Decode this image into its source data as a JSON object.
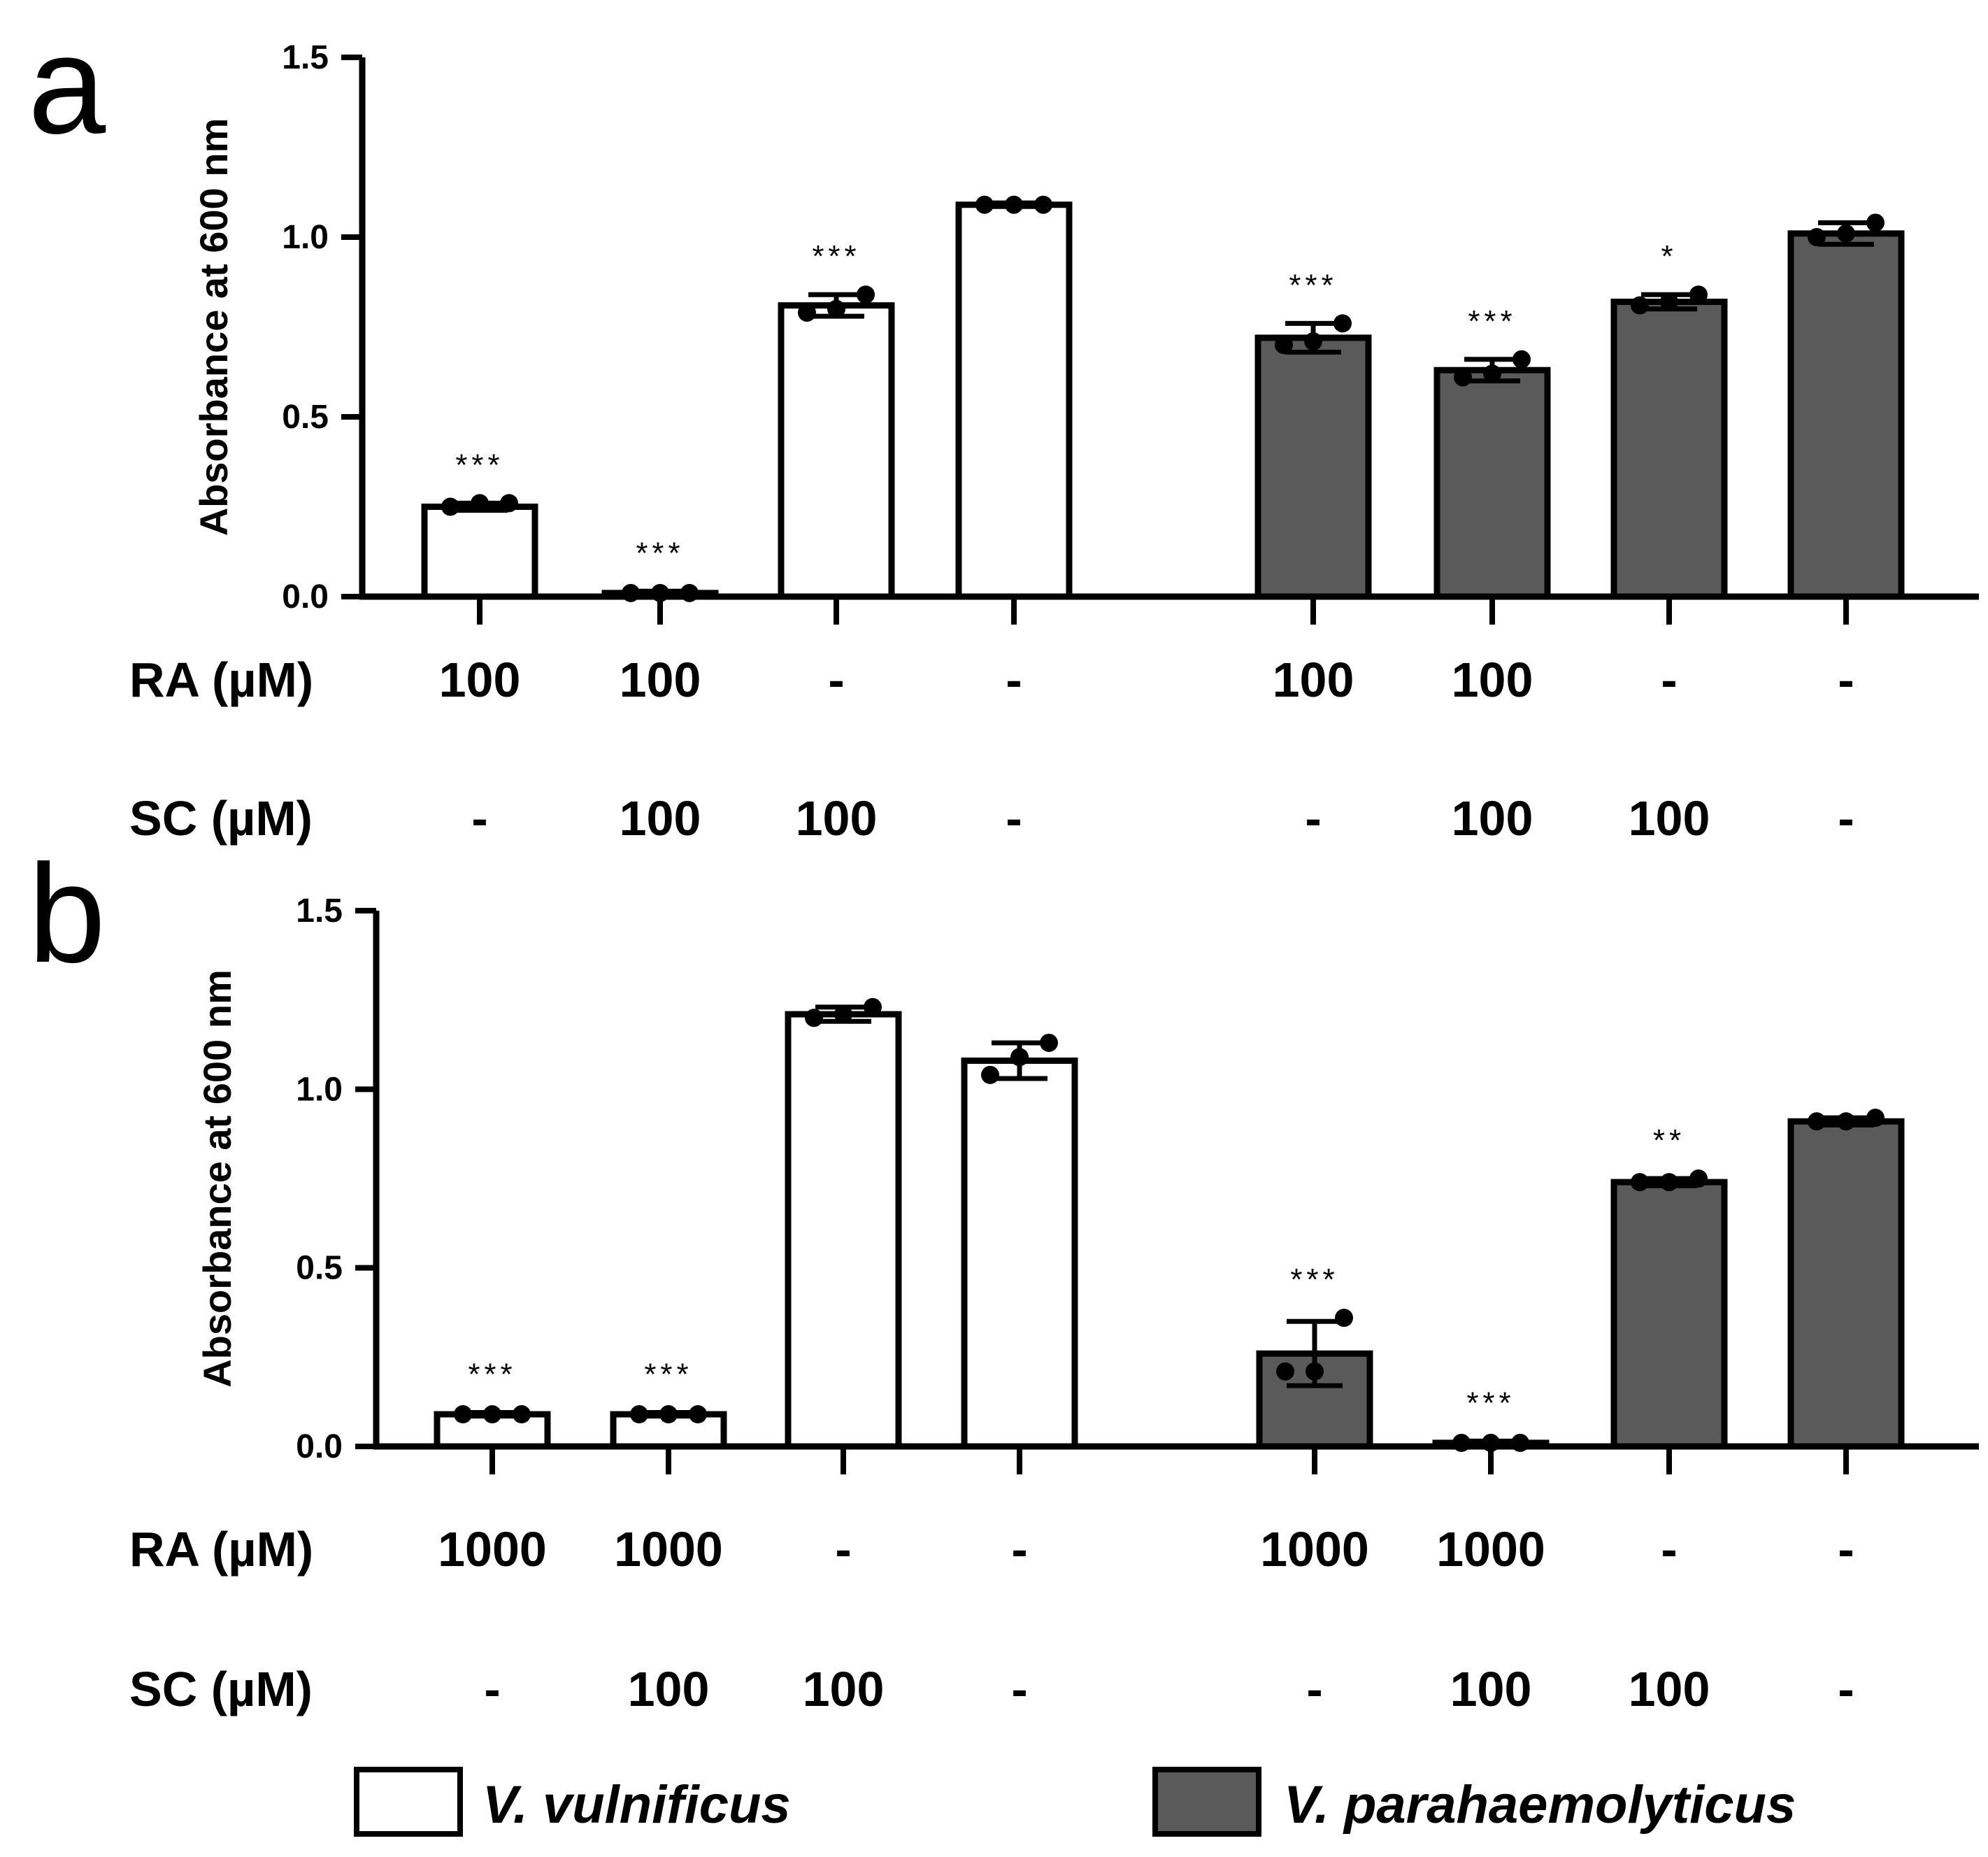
{
  "colors": {
    "series_1": "#ffffff",
    "series_2": "#5a5a5a",
    "stroke": "#000000"
  },
  "legend": [
    {
      "name": "V. vulnificus",
      "color": "#ffffff"
    },
    {
      "name": "V. parahaemolyticus",
      "color": "#5a5a5a"
    }
  ],
  "chart_data": [
    {
      "panel": "a",
      "type": "bar",
      "ylabel": "Absorbance at 600 nm",
      "ylim": [
        0,
        1.5
      ],
      "yticks": [
        "0.0",
        "0.5",
        "1.0",
        "1.5"
      ],
      "condition_labels": [
        "RA (µM)",
        "SC (µM)"
      ],
      "bars": [
        {
          "series": "V. vulnificus",
          "value": 0.25,
          "err": 0.01,
          "points": [
            0.25,
            0.26,
            0.26
          ],
          "RA": "100",
          "SC": "-",
          "sig": "***"
        },
        {
          "series": "V. vulnificus",
          "value": 0.01,
          "err": 0.005,
          "points": [
            0.01,
            0.01,
            0.01
          ],
          "RA": "100",
          "SC": "100",
          "sig": "***"
        },
        {
          "series": "V. vulnificus",
          "value": 0.81,
          "err": 0.03,
          "points": [
            0.79,
            0.8,
            0.84
          ],
          "RA": "-",
          "SC": "100",
          "sig": "***"
        },
        {
          "series": "V. vulnificus",
          "value": 1.09,
          "err": 0.005,
          "points": [
            1.09,
            1.09,
            1.09
          ],
          "RA": "-",
          "SC": "-",
          "sig": ""
        },
        {
          "series": "V. parahaemolyticus",
          "value": 0.72,
          "err": 0.04,
          "points": [
            0.7,
            0.71,
            0.76
          ],
          "RA": "100",
          "SC": "-",
          "sig": "***"
        },
        {
          "series": "V. parahaemolyticus",
          "value": 0.63,
          "err": 0.03,
          "points": [
            0.61,
            0.62,
            0.66
          ],
          "RA": "100",
          "SC": "100",
          "sig": "***"
        },
        {
          "series": "V. parahaemolyticus",
          "value": 0.82,
          "err": 0.02,
          "points": [
            0.81,
            0.82,
            0.84
          ],
          "RA": "-",
          "SC": "100",
          "sig": "*"
        },
        {
          "series": "V. parahaemolyticus",
          "value": 1.01,
          "err": 0.03,
          "points": [
            1.0,
            1.01,
            1.04
          ],
          "RA": "-",
          "SC": "-",
          "sig": ""
        }
      ]
    },
    {
      "panel": "b",
      "type": "bar",
      "ylabel": "Absorbance at 600 nm",
      "ylim": [
        0,
        1.5
      ],
      "yticks": [
        "0.0",
        "0.5",
        "1.0",
        "1.5"
      ],
      "condition_labels": [
        "RA (µM)",
        "SC (µM)"
      ],
      "bars": [
        {
          "series": "V. vulnificus",
          "value": 0.09,
          "err": 0.005,
          "points": [
            0.09,
            0.09,
            0.09
          ],
          "RA": "1000",
          "SC": "-",
          "sig": "***"
        },
        {
          "series": "V. vulnificus",
          "value": 0.09,
          "err": 0.005,
          "points": [
            0.09,
            0.09,
            0.09
          ],
          "RA": "1000",
          "SC": "100",
          "sig": "***"
        },
        {
          "series": "V. vulnificus",
          "value": 1.21,
          "err": 0.02,
          "points": [
            1.2,
            1.21,
            1.23
          ],
          "RA": "-",
          "SC": "100",
          "sig": ""
        },
        {
          "series": "V. vulnificus",
          "value": 1.08,
          "err": 0.05,
          "points": [
            1.04,
            1.09,
            1.13
          ],
          "RA": "-",
          "SC": "-",
          "sig": ""
        },
        {
          "series": "V. parahaemolyticus",
          "value": 0.26,
          "err": 0.09,
          "points": [
            0.21,
            0.21,
            0.36
          ],
          "RA": "1000",
          "SC": "-",
          "sig": "***"
        },
        {
          "series": "V. parahaemolyticus",
          "value": 0.01,
          "err": 0.005,
          "points": [
            0.01,
            0.01,
            0.01
          ],
          "RA": "1000",
          "SC": "100",
          "sig": "***"
        },
        {
          "series": "V. parahaemolyticus",
          "value": 0.74,
          "err": 0.01,
          "points": [
            0.74,
            0.74,
            0.75
          ],
          "RA": "-",
          "SC": "100",
          "sig": "**"
        },
        {
          "series": "V. parahaemolyticus",
          "value": 0.91,
          "err": 0.01,
          "points": [
            0.91,
            0.91,
            0.92
          ],
          "RA": "-",
          "SC": "-",
          "sig": ""
        }
      ]
    }
  ]
}
